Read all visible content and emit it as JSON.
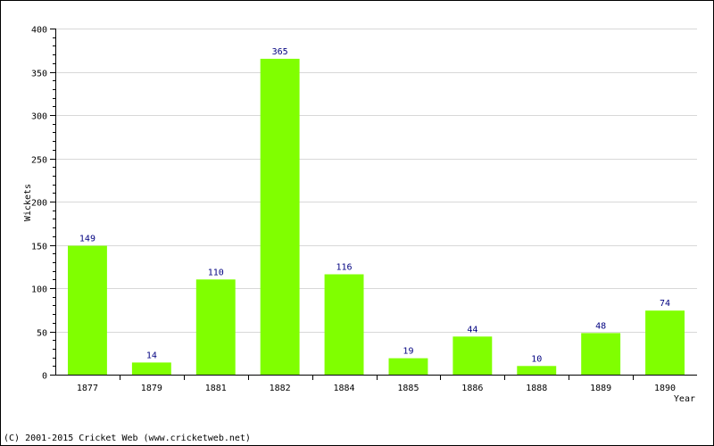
{
  "chart_data": {
    "type": "bar",
    "categories": [
      "1877",
      "1879",
      "1881",
      "1882",
      "1884",
      "1885",
      "1886",
      "1888",
      "1889",
      "1890"
    ],
    "values": [
      149,
      14,
      110,
      365,
      116,
      19,
      44,
      10,
      48,
      74
    ],
    "xlabel": "Year",
    "ylabel": "Wickets",
    "ylim": [
      0,
      400
    ],
    "yticks": [
      0,
      50,
      100,
      150,
      200,
      250,
      300,
      350,
      400
    ],
    "grid": true,
    "bar_color": "#80ff00",
    "value_label_color": "#000080"
  },
  "footer": {
    "copyright": "(C) 2001-2015 Cricket Web (www.cricketweb.net)"
  }
}
